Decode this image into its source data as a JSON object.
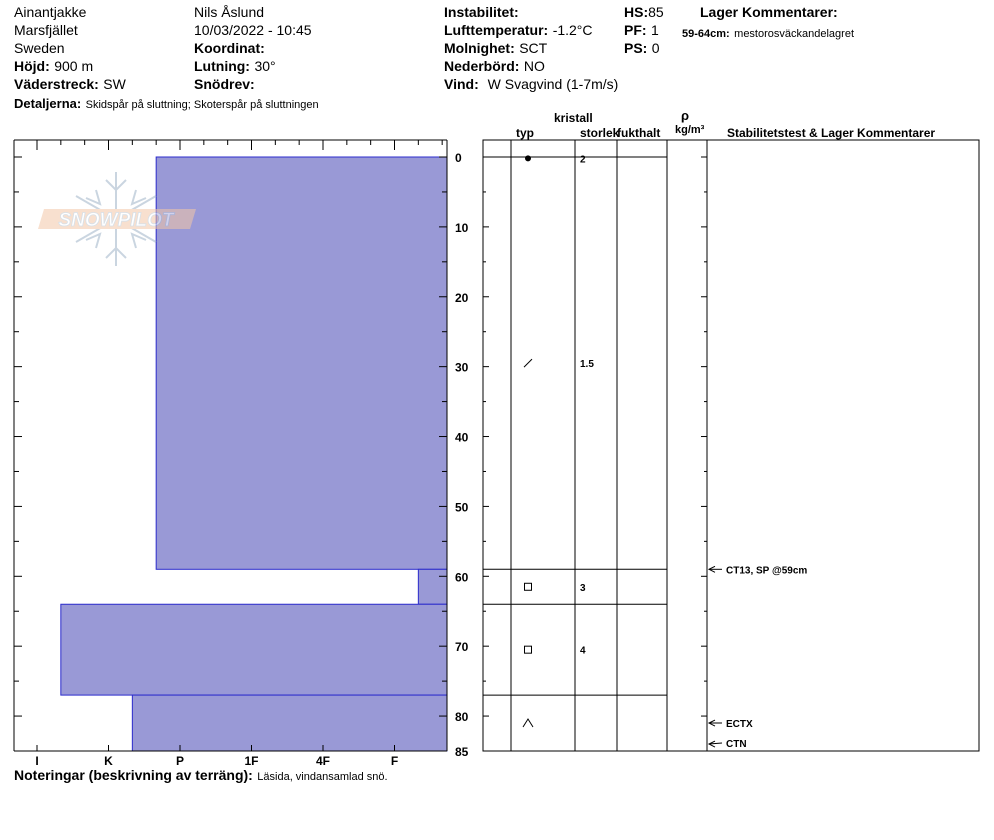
{
  "header": {
    "location": "Ainantjakke",
    "region": "Marsfjället",
    "country": "Sweden",
    "elevation_label": "Höjd:",
    "elevation_value": "900 m",
    "aspect_label": "Väderstreck:",
    "aspect_value": "SW",
    "details_label": "Detaljerna:",
    "details_value": "Skidspår på sluttning;  Skoterspår på sluttningen",
    "observer": "Nils Åslund",
    "datetime": "10/03/2022 - 10:45",
    "coord_label": "Koordinat:",
    "slope_label": "Lutning:",
    "slope_value": "30°",
    "drift_label": "Snödrev:",
    "instability_label": "Instabilitet:",
    "air_temp_label": "Lufttemperatur:",
    "air_temp_value": "-1.2°C",
    "cloud_label": "Molnighet:",
    "cloud_value": "SCT",
    "precip_label": "Nederbörd:",
    "precip_value": "NO",
    "wind_label": "Vind:",
    "wind_value": "W Svagvind (1-7m/s)",
    "hs_label": "HS:",
    "hs_value": "85",
    "pf_label": "PF:",
    "pf_value": "1",
    "ps_label": "PS:",
    "ps_value": "0",
    "layer_comments_label": "Lager Kommentarer:",
    "layer_comment_range": "59-64cm:",
    "layer_comment_text": "mestorosväckandelagret"
  },
  "table_headers": {
    "crystal": "kristall",
    "type": "typ",
    "size": "storlek",
    "moisture": "fukthalt",
    "rho": "ρ",
    "density_unit": "kg/m³",
    "stability": "Stabilitetstest & Lager Kommentarer"
  },
  "watermark": "SNOWPILOT",
  "notes": {
    "label": "Noteringar (beskrivning av terräng):",
    "value": "Läsida, vindansamlad snö."
  },
  "chart_data": {
    "type": "bar",
    "description_axis": "hardness profile",
    "hardness_categories": [
      "I",
      "K",
      "P",
      "1F",
      "4F",
      "F"
    ],
    "depth_ticks": [
      "0",
      "10",
      "20",
      "30",
      "40",
      "50",
      "60",
      "70",
      "80",
      "85"
    ],
    "depth_range": [
      0,
      85
    ],
    "layers": [
      {
        "top": 0,
        "bottom": 59,
        "hardness": "P-"
      },
      {
        "top": 59,
        "bottom": 64,
        "hardness": "F+"
      },
      {
        "top": 64,
        "bottom": 77,
        "hardness": "I+"
      },
      {
        "top": 77,
        "bottom": 85,
        "hardness": "K+"
      }
    ],
    "grain_rows": [
      {
        "depth": 1.2,
        "type": "dot",
        "size": "2"
      },
      {
        "depth": 29.5,
        "type": "slash",
        "size": "1.5"
      },
      {
        "depth": 61.5,
        "type": "square",
        "size": "3"
      },
      {
        "depth": 70.5,
        "type": "square",
        "size": "4"
      },
      {
        "depth": 81,
        "type": "caret",
        "size": ""
      }
    ],
    "stability_tests": [
      {
        "depth": 59,
        "label": "CT13, SP @59cm"
      },
      {
        "depth": 81,
        "label": "ECTX"
      },
      {
        "depth": 84,
        "label": "CTN"
      }
    ],
    "bar_color": "#9999d6",
    "bar_edge_color": "#2b2bcc"
  }
}
